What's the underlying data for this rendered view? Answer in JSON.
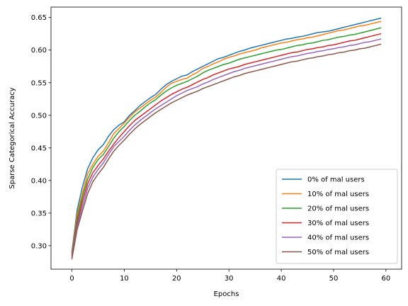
{
  "chart_data": {
    "type": "line",
    "title": "",
    "xlabel": "Epochs",
    "ylabel": "Sparse Categorical Accuracy",
    "xlim": [
      -4,
      63
    ],
    "ylim": [
      0.264,
      0.666
    ],
    "xticks": [
      0,
      10,
      20,
      30,
      40,
      50,
      60
    ],
    "yticks": [
      0.3,
      0.35,
      0.4,
      0.45,
      0.5,
      0.55,
      0.6,
      0.65
    ],
    "grid": false,
    "legend_position": "lower-right",
    "x": [
      0,
      1,
      2,
      3,
      4,
      5,
      6,
      7,
      8,
      9,
      10,
      11,
      12,
      13,
      14,
      15,
      16,
      17,
      18,
      19,
      20,
      21,
      22,
      23,
      24,
      25,
      26,
      27,
      28,
      29,
      30,
      31,
      32,
      33,
      34,
      35,
      36,
      37,
      38,
      39,
      40,
      41,
      42,
      43,
      44,
      45,
      46,
      47,
      48,
      49,
      50,
      51,
      52,
      53,
      54,
      55,
      56,
      57,
      58,
      59
    ],
    "series": [
      {
        "name": "0% of mal users",
        "color": "#1f77b4",
        "values": [
          0.291,
          0.355,
          0.39,
          0.418,
          0.435,
          0.447,
          0.455,
          0.468,
          0.478,
          0.485,
          0.49,
          0.5,
          0.507,
          0.515,
          0.521,
          0.527,
          0.532,
          0.54,
          0.547,
          0.552,
          0.556,
          0.56,
          0.562,
          0.567,
          0.571,
          0.575,
          0.579,
          0.583,
          0.587,
          0.589,
          0.592,
          0.595,
          0.598,
          0.6,
          0.603,
          0.605,
          0.607,
          0.609,
          0.611,
          0.613,
          0.615,
          0.617,
          0.618,
          0.62,
          0.621,
          0.623,
          0.625,
          0.627,
          0.628,
          0.629,
          0.631,
          0.633,
          0.635,
          0.637,
          0.639,
          0.641,
          0.643,
          0.645,
          0.647,
          0.649
        ]
      },
      {
        "name": "10% of mal users",
        "color": "#ff7f0e",
        "values": [
          0.289,
          0.348,
          0.38,
          0.41,
          0.425,
          0.437,
          0.445,
          0.458,
          0.472,
          0.48,
          0.488,
          0.497,
          0.505,
          0.511,
          0.517,
          0.523,
          0.528,
          0.535,
          0.543,
          0.549,
          0.552,
          0.555,
          0.557,
          0.562,
          0.566,
          0.572,
          0.575,
          0.579,
          0.582,
          0.586,
          0.589,
          0.591,
          0.594,
          0.596,
          0.598,
          0.6,
          0.603,
          0.605,
          0.607,
          0.609,
          0.611,
          0.612,
          0.614,
          0.616,
          0.617,
          0.619,
          0.62,
          0.622,
          0.624,
          0.626,
          0.628,
          0.63,
          0.631,
          0.633,
          0.635,
          0.637,
          0.638,
          0.64,
          0.642,
          0.644
        ]
      },
      {
        "name": "20% of mal users",
        "color": "#2ca02c",
        "values": [
          0.287,
          0.342,
          0.375,
          0.402,
          0.42,
          0.432,
          0.44,
          0.452,
          0.465,
          0.475,
          0.483,
          0.492,
          0.5,
          0.506,
          0.513,
          0.519,
          0.524,
          0.531,
          0.537,
          0.542,
          0.546,
          0.549,
          0.552,
          0.556,
          0.56,
          0.565,
          0.569,
          0.572,
          0.575,
          0.578,
          0.58,
          0.583,
          0.586,
          0.588,
          0.59,
          0.592,
          0.594,
          0.596,
          0.598,
          0.6,
          0.601,
          0.603,
          0.605,
          0.607,
          0.608,
          0.61,
          0.611,
          0.613,
          0.615,
          0.616,
          0.618,
          0.62,
          0.621,
          0.623,
          0.624,
          0.626,
          0.628,
          0.63,
          0.632,
          0.634
        ]
      },
      {
        "name": "30% of mal users",
        "color": "#d62728",
        "values": [
          0.285,
          0.335,
          0.368,
          0.395,
          0.412,
          0.423,
          0.433,
          0.445,
          0.456,
          0.466,
          0.475,
          0.484,
          0.492,
          0.498,
          0.504,
          0.51,
          0.516,
          0.522,
          0.527,
          0.532,
          0.536,
          0.54,
          0.543,
          0.547,
          0.551,
          0.555,
          0.558,
          0.562,
          0.565,
          0.568,
          0.571,
          0.573,
          0.575,
          0.578,
          0.58,
          0.582,
          0.584,
          0.586,
          0.588,
          0.59,
          0.592,
          0.594,
          0.596,
          0.597,
          0.599,
          0.601,
          0.602,
          0.604,
          0.605,
          0.607,
          0.608,
          0.61,
          0.612,
          0.614,
          0.615,
          0.617,
          0.619,
          0.621,
          0.623,
          0.625
        ]
      },
      {
        "name": "40% of mal users",
        "color": "#9467bd",
        "values": [
          0.283,
          0.33,
          0.36,
          0.388,
          0.405,
          0.417,
          0.427,
          0.44,
          0.452,
          0.46,
          0.468,
          0.477,
          0.485,
          0.492,
          0.498,
          0.504,
          0.51,
          0.515,
          0.52,
          0.525,
          0.53,
          0.534,
          0.538,
          0.541,
          0.544,
          0.548,
          0.551,
          0.555,
          0.558,
          0.561,
          0.564,
          0.567,
          0.569,
          0.572,
          0.574,
          0.576,
          0.578,
          0.58,
          0.582,
          0.584,
          0.586,
          0.588,
          0.59,
          0.591,
          0.593,
          0.595,
          0.596,
          0.598,
          0.599,
          0.601,
          0.602,
          0.604,
          0.605,
          0.607,
          0.608,
          0.61,
          0.612,
          0.613,
          0.615,
          0.617
        ]
      },
      {
        "name": "50% of mal users",
        "color": "#8c564b",
        "values": [
          0.28,
          0.325,
          0.353,
          0.38,
          0.398,
          0.41,
          0.42,
          0.433,
          0.445,
          0.454,
          0.462,
          0.471,
          0.479,
          0.486,
          0.492,
          0.498,
          0.504,
          0.509,
          0.514,
          0.519,
          0.523,
          0.527,
          0.531,
          0.534,
          0.537,
          0.541,
          0.544,
          0.547,
          0.55,
          0.553,
          0.556,
          0.559,
          0.561,
          0.564,
          0.566,
          0.568,
          0.57,
          0.572,
          0.574,
          0.576,
          0.578,
          0.58,
          0.582,
          0.583,
          0.585,
          0.587,
          0.588,
          0.59,
          0.591,
          0.593,
          0.594,
          0.596,
          0.597,
          0.599,
          0.6,
          0.602,
          0.603,
          0.605,
          0.607,
          0.609
        ]
      }
    ],
    "noise": {
      "1": [
        0,
        0,
        0,
        0,
        0,
        0,
        0,
        0,
        0,
        0,
        0,
        0,
        0,
        0,
        0,
        0,
        0,
        0,
        0,
        0,
        0,
        0,
        0,
        0,
        0,
        0,
        0,
        0,
        0,
        0,
        0,
        0,
        0,
        0,
        0,
        0,
        0,
        0,
        0,
        0,
        0,
        0,
        0,
        0,
        0,
        0,
        0,
        0,
        0,
        0,
        0,
        0,
        0,
        0,
        0,
        0,
        0,
        0,
        0,
        0
      ]
    }
  }
}
